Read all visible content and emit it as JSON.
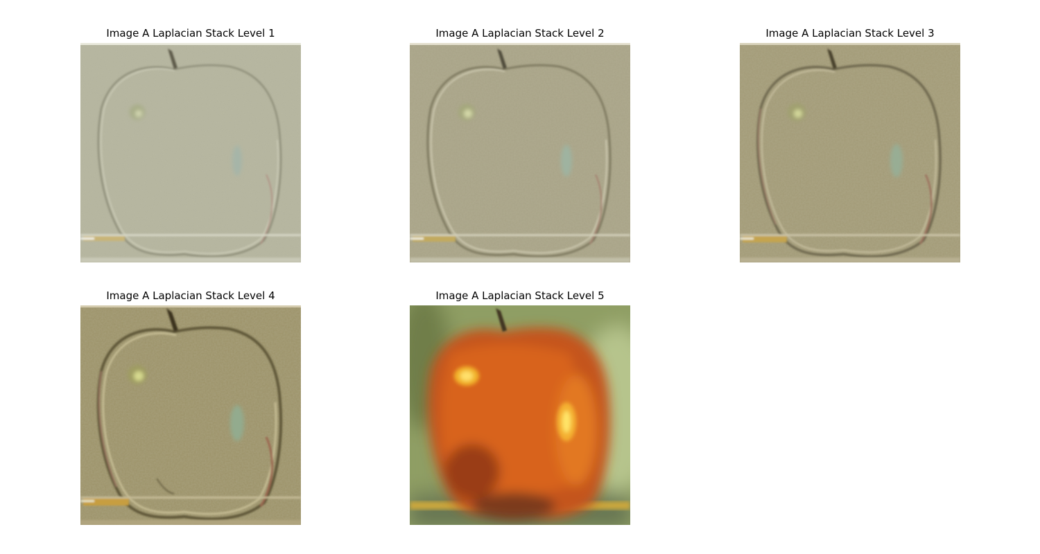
{
  "figure": {
    "panels": [
      {
        "title": "Image A Laplacian Stack Level 1",
        "image": "laplacian-level-1"
      },
      {
        "title": "Image A Laplacian Stack Level 2",
        "image": "laplacian-level-2"
      },
      {
        "title": "Image A Laplacian Stack Level 3",
        "image": "laplacian-level-3"
      },
      {
        "title": "Image A Laplacian Stack Level 4",
        "image": "laplacian-level-4"
      },
      {
        "title": "Image A Laplacian Stack Level 5",
        "image": "laplacian-level-5"
      }
    ]
  }
}
